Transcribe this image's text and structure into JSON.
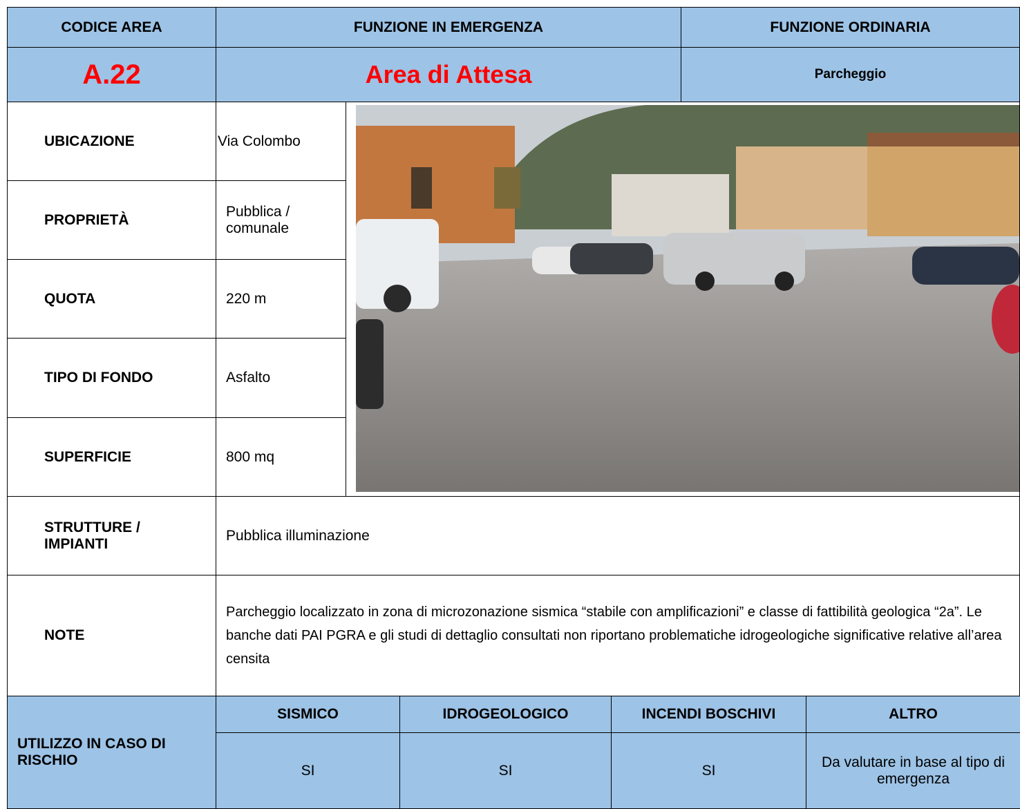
{
  "header": {
    "codice_area_label": "CODICE AREA",
    "funzione_emergenza_label": "FUNZIONE IN EMERGENZA",
    "funzione_ordinaria_label": "FUNZIONE ORDINARIA",
    "codice_area": "A.22",
    "funzione_emergenza": "Area di Attesa",
    "funzione_ordinaria": "Parcheggio"
  },
  "details": [
    {
      "label": "UBICAZIONE",
      "value": "Via Colombo"
    },
    {
      "label": "PROPRIETÀ",
      "value": "Pubblica / comunale"
    },
    {
      "label": "QUOTA",
      "value": "220 m"
    },
    {
      "label": "TIPO DI FONDO",
      "value": "Asfalto"
    },
    {
      "label": "SUPERFICIE",
      "value": "800 mq"
    }
  ],
  "strutture": {
    "label": "STRUTTURE / IMPIANTI",
    "value": "Pubblica illuminazione"
  },
  "note": {
    "label": "NOTE",
    "value": "Parcheggio localizzato in zona di microzonazione sismica “stabile con amplificazioni” e classe di fattibilità geologica “2a”. Le banche dati PAI PGRA e gli studi di dettaglio consultati non riportano problematiche idrogeologiche significative relative all’area censita"
  },
  "rischio": {
    "label": "UTILIZZO IN CASO DI RISCHIO",
    "columns": [
      "SISMICO",
      "IDROGEOLOGICO",
      "INCENDI BOSCHIVI",
      "ALTRO"
    ],
    "values": [
      "SI",
      "SI",
      "SI",
      "Da valutare in base al tipo di emergenza"
    ]
  }
}
